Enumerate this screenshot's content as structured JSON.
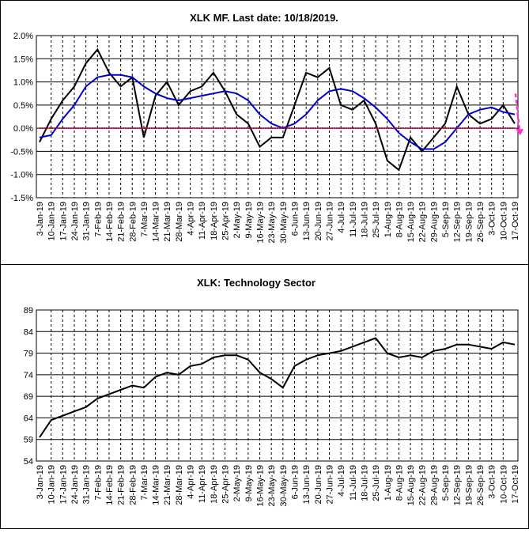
{
  "chart_data": [
    {
      "type": "line",
      "title": "XLK MF. Last date: 10/18/2019.",
      "xlabel": "",
      "ylabel": "",
      "ylim": [
        -0.015,
        0.02
      ],
      "yticks": [
        "2.0%",
        "1.5%",
        "1.0%",
        "0.5%",
        "0.0%",
        "-0.5%",
        "-1.0%",
        "-1.5%"
      ],
      "ytick_values": [
        0.02,
        0.015,
        0.01,
        0.005,
        0.0,
        -0.005,
        -0.01,
        -0.015
      ],
      "categories": [
        "3-Jan-19",
        "10-Jan-19",
        "17-Jan-19",
        "24-Jan-19",
        "31-Jan-19",
        "7-Feb-19",
        "14-Feb-19",
        "21-Feb-19",
        "28-Feb-19",
        "7-Mar-19",
        "14-Mar-19",
        "21-Mar-19",
        "28-Mar-19",
        "4-Apr-19",
        "11-Apr-19",
        "18-Apr-19",
        "25-Apr-19",
        "2-May-19",
        "9-May-19",
        "16-May-19",
        "23-May-19",
        "30-May-19",
        "6-Jun-19",
        "13-Jun-19",
        "20-Jun-19",
        "27-Jun-19",
        "4-Jul-19",
        "11-Jul-19",
        "18-Jul-19",
        "25-Jul-19",
        "1-Aug-19",
        "8-Aug-19",
        "15-Aug-19",
        "22-Aug-19",
        "29-Aug-19",
        "5-Sep-19",
        "12-Sep-19",
        "19-Sep-19",
        "26-Sep-19",
        "3-Oct-19",
        "10-Oct-19",
        "17-Oct-19"
      ],
      "grid": true,
      "series": [
        {
          "values": [
            -0.003,
            0.002,
            0.006,
            0.009,
            0.014,
            0.017,
            0.012,
            0.009,
            0.011,
            -0.002,
            0.007,
            0.01,
            0.005,
            0.008,
            0.009,
            0.012,
            0.008,
            0.003,
            0.001,
            -0.004,
            -0.002,
            -0.002,
            0.005,
            0.012,
            0.011,
            0.013,
            0.005,
            0.004,
            0.006,
            0.001,
            -0.007,
            -0.009,
            -0.002,
            -0.005,
            -0.002,
            0.001,
            0.009,
            0.003,
            0.001,
            0.002,
            0.005,
            0.001
          ],
          "color": "#000000"
        },
        {
          "values": [
            -0.002,
            -0.0015,
            0.002,
            0.005,
            0.009,
            0.011,
            0.0115,
            0.0115,
            0.011,
            0.009,
            0.0075,
            0.0065,
            0.006,
            0.0065,
            0.007,
            0.0075,
            0.008,
            0.0075,
            0.006,
            0.003,
            0.001,
            0.0,
            0.001,
            0.003,
            0.006,
            0.008,
            0.0085,
            0.008,
            0.0065,
            0.0045,
            0.002,
            -0.001,
            -0.003,
            -0.0045,
            -0.0045,
            -0.003,
            0.0,
            0.003,
            0.004,
            0.0045,
            0.0035,
            0.003
          ],
          "color": "#0000CC"
        },
        {
          "values": [
            0,
            0,
            0,
            0,
            0,
            0,
            0,
            0,
            0,
            0,
            0,
            0,
            0,
            0,
            0,
            0,
            0,
            0,
            0,
            0,
            0,
            0,
            0,
            0,
            0,
            0,
            0,
            0,
            0,
            0,
            0,
            0,
            0,
            0,
            0,
            0,
            0,
            0,
            0,
            0,
            0,
            0
          ],
          "color": "#CC0033"
        }
      ],
      "colors": {
        "price": "#000000",
        "average": "#0000CC",
        "zero": "#CC0033",
        "arrow": "#FF33CC"
      }
    },
    {
      "type": "line",
      "title": "XLK: Technology Sector",
      "xlabel": "",
      "ylabel": "",
      "ylim": [
        54,
        89
      ],
      "yticks": [
        "89",
        "84",
        "79",
        "74",
        "69",
        "64",
        "59",
        "54"
      ],
      "ytick_values": [
        89,
        84,
        79,
        74,
        69,
        64,
        59,
        54
      ],
      "categories": [
        "3-Jan-19",
        "10-Jan-19",
        "17-Jan-19",
        "24-Jan-19",
        "31-Jan-19",
        "7-Feb-19",
        "14-Feb-19",
        "21-Feb-19",
        "28-Feb-19",
        "7-Mar-19",
        "14-Mar-19",
        "21-Mar-19",
        "28-Mar-19",
        "4-Apr-19",
        "11-Apr-19",
        "18-Apr-19",
        "25-Apr-19",
        "2-May-19",
        "9-May-19",
        "16-May-19",
        "23-May-19",
        "30-May-19",
        "6-Jun-19",
        "13-Jun-19",
        "20-Jun-19",
        "27-Jun-19",
        "4-Jul-19",
        "11-Jul-19",
        "18-Jul-19",
        "25-Jul-19",
        "1-Aug-19",
        "8-Aug-19",
        "15-Aug-19",
        "22-Aug-19",
        "29-Aug-19",
        "5-Sep-19",
        "12-Sep-19",
        "19-Sep-19",
        "26-Sep-19",
        "3-Oct-19",
        "10-Oct-19",
        "17-Oct-19"
      ],
      "grid": true,
      "series": [
        {
          "values": [
            59.5,
            63.5,
            64.5,
            65.5,
            66.5,
            68.5,
            69.5,
            70.5,
            71.5,
            71.0,
            73.5,
            74.5,
            74.0,
            76.0,
            76.5,
            78.0,
            78.5,
            78.5,
            77.5,
            74.5,
            73.0,
            71.0,
            76.0,
            77.5,
            78.5,
            79.0,
            79.5,
            80.5,
            81.5,
            82.5,
            79.0,
            78.0,
            78.5,
            78.0,
            79.5,
            80.0,
            81.0,
            81.0,
            80.5,
            80.0,
            81.5,
            81.0
          ],
          "color": "#000000"
        }
      ]
    }
  ]
}
